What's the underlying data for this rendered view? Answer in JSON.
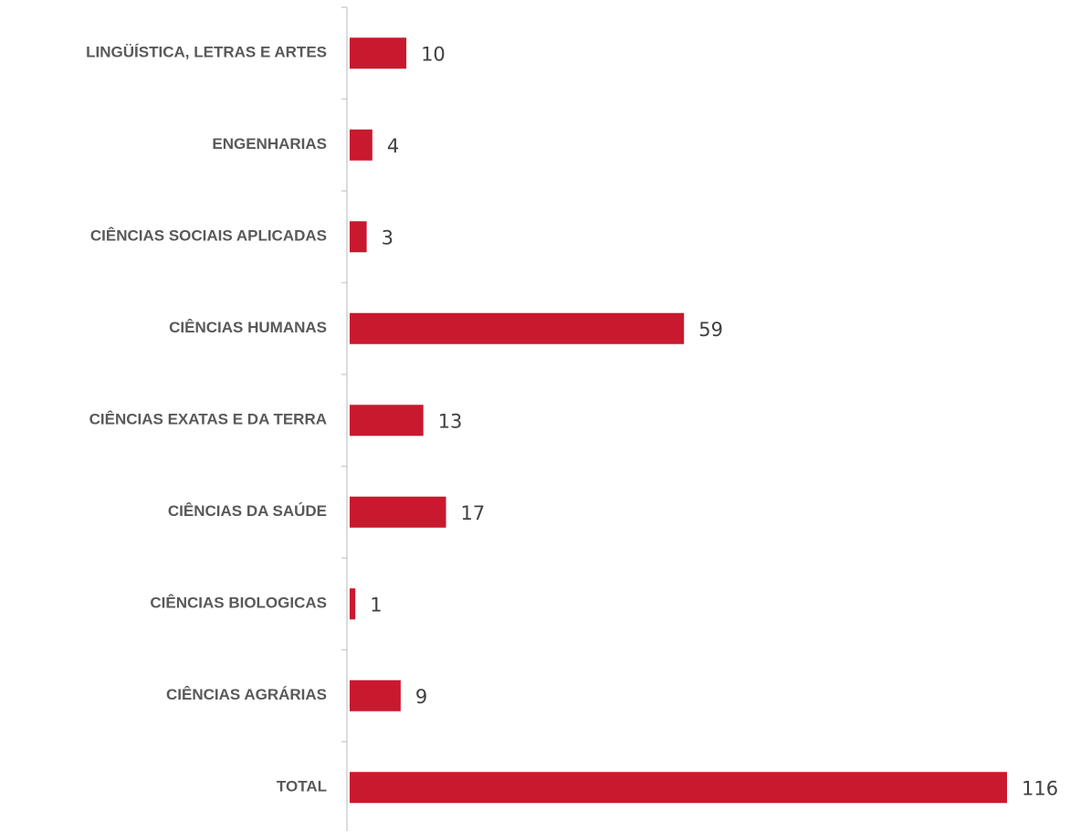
{
  "chart_data": {
    "type": "barh",
    "categories": [
      "LINGÜÍSTICA, LETRAS E ARTES",
      "ENGENHARIAS",
      "CIÊNCIAS SOCIAIS APLICADAS",
      "CIÊNCIAS HUMANAS",
      "CIÊNCIAS EXATAS E DA TERRA",
      "CIÊNCIAS DA SAÚDE",
      "CIÊNCIAS BIOLOGICAS",
      "CIÊNCIAS AGRÁRIAS",
      "TOTAL"
    ],
    "values": [
      10,
      4,
      3,
      59,
      13,
      17,
      1,
      9,
      116
    ],
    "color": "#c8192e"
  }
}
